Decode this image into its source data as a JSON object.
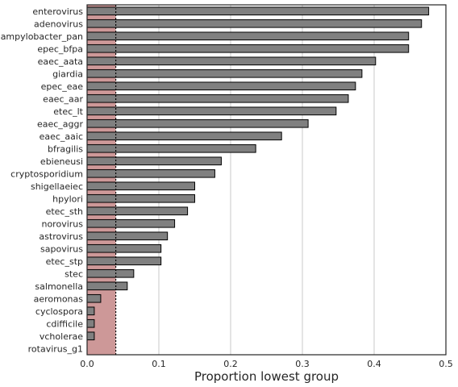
{
  "chart_data": {
    "type": "bar",
    "orientation": "horizontal",
    "xlabel": "Proportion lowest group",
    "ylabel": "",
    "xlim": [
      0,
      0.5
    ],
    "xticks": [
      "0.0",
      "0.1",
      "0.2",
      "0.3",
      "0.4",
      "0.5"
    ],
    "grid": "vertical",
    "reference_line": 0.04,
    "categories": [
      "enterovirus",
      "adenovirus",
      "campylobacter_pan",
      "epec_bfpa",
      "eaec_aata",
      "giardia",
      "epec_eae",
      "eaec_aar",
      "etec_lt",
      "eaec_aggr",
      "eaec_aaic",
      "bfragilis",
      "ebieneusi",
      "cryptosporidium",
      "shigellaeiec",
      "hpylori",
      "etec_sth",
      "norovirus",
      "astrovirus",
      "sapovirus",
      "etec_stp",
      "stec",
      "salmonella",
      "aeromonas",
      "cyclospora",
      "cdifficile",
      "vcholerae",
      "rotavirus_g1"
    ],
    "values": [
      0.476,
      0.466,
      0.448,
      0.448,
      0.402,
      0.383,
      0.374,
      0.364,
      0.347,
      0.308,
      0.271,
      0.235,
      0.187,
      0.178,
      0.15,
      0.15,
      0.14,
      0.122,
      0.112,
      0.103,
      0.103,
      0.065,
      0.056,
      0.019,
      0.01,
      0.01,
      0.01,
      0.0
    ],
    "colors": {
      "bar": "#808080",
      "bar_edge": "#000000",
      "band": "#cd9898",
      "reference_line": "#000000",
      "grid": "#c8c8c8",
      "frame": "#262626"
    }
  }
}
